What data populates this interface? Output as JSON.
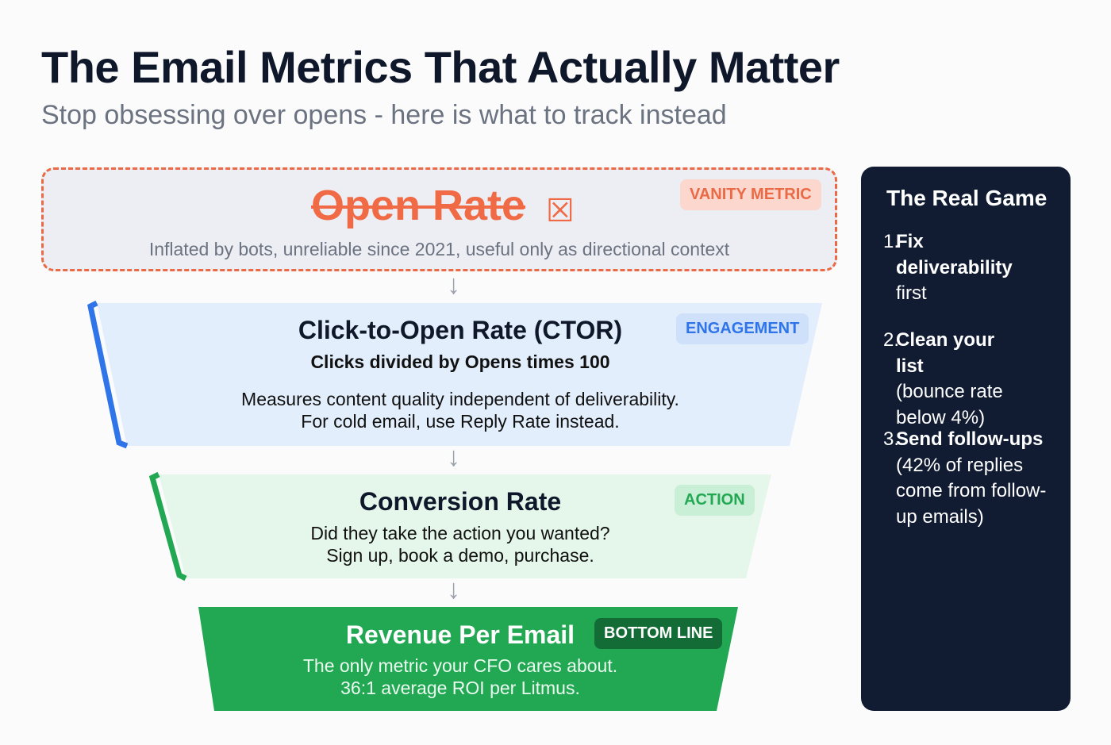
{
  "header": {
    "title": "The Email Metrics That Actually Matter",
    "subtitle": "Stop obsessing over opens - here is what to track instead"
  },
  "funnel": [
    {
      "title": "Open Rate",
      "badge": "VANITY METRIC",
      "description": "Inflated by bots, unreliable since 2021, useful only as directional context",
      "icon": "crossed-box-icon"
    },
    {
      "title": "Click-to-Open Rate (CTOR)",
      "badge": "ENGAGEMENT",
      "formula": "Clicks divided by Opens times 100",
      "line1": "Measures content quality independent of deliverability.",
      "line2": "For cold email, use Reply Rate instead."
    },
    {
      "title": "Conversion Rate",
      "badge": "ACTION",
      "line1": "Did they take the action you wanted?",
      "line2": "Sign up, book a demo, purchase."
    },
    {
      "title": "Revenue Per Email",
      "badge": "BOTTOM LINE",
      "line1": "The only metric your CFO cares about.",
      "line2": "36:1 average ROI per Litmus."
    }
  ],
  "arrow": "↓",
  "sidebar": {
    "title": "The Real Game",
    "steps": [
      {
        "num": "1.",
        "bold": "Fix deliverability",
        "rest": "first"
      },
      {
        "num": "2.",
        "bold": "Clean your list",
        "rest": "(bounce rate below 4%)"
      },
      {
        "num": "3.",
        "bold": "Send follow-ups",
        "rest": "(42% of replies come from follow-up emails)"
      }
    ]
  },
  "colors": {
    "orange": "#ea6a45",
    "blue": "#2f74e8",
    "green": "#22a853",
    "navy": "#111c33"
  }
}
